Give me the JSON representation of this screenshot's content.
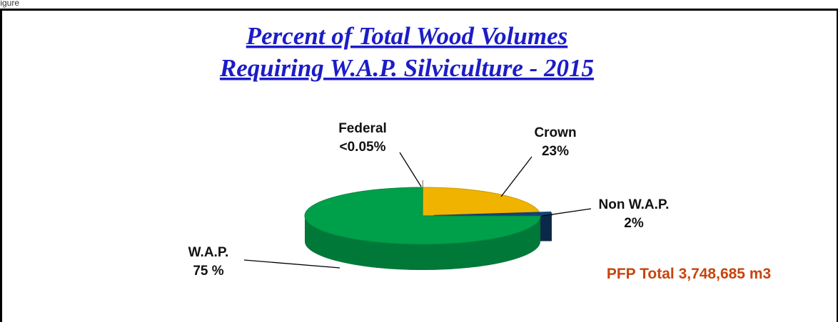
{
  "chart_data": {
    "type": "pie3d",
    "figure_label": "Figure",
    "title": [
      "Percent of Total Wood Volumes",
      "Requiring W.A.P. Silviculture - 2015"
    ],
    "categories": [
      "Federal",
      "Crown",
      "Non W.A.P.",
      "W.A.P."
    ],
    "values": [
      0.05,
      23,
      2,
      75
    ],
    "value_labels": [
      "<0.05%",
      "23%",
      "2%",
      "75 %"
    ],
    "colors": [
      "#ffffff",
      "#efb300",
      "#10457a",
      "#00a04a"
    ],
    "explode": [
      true,
      false,
      true,
      false
    ],
    "annotation": "PFP Total 3,748,685 m3"
  }
}
